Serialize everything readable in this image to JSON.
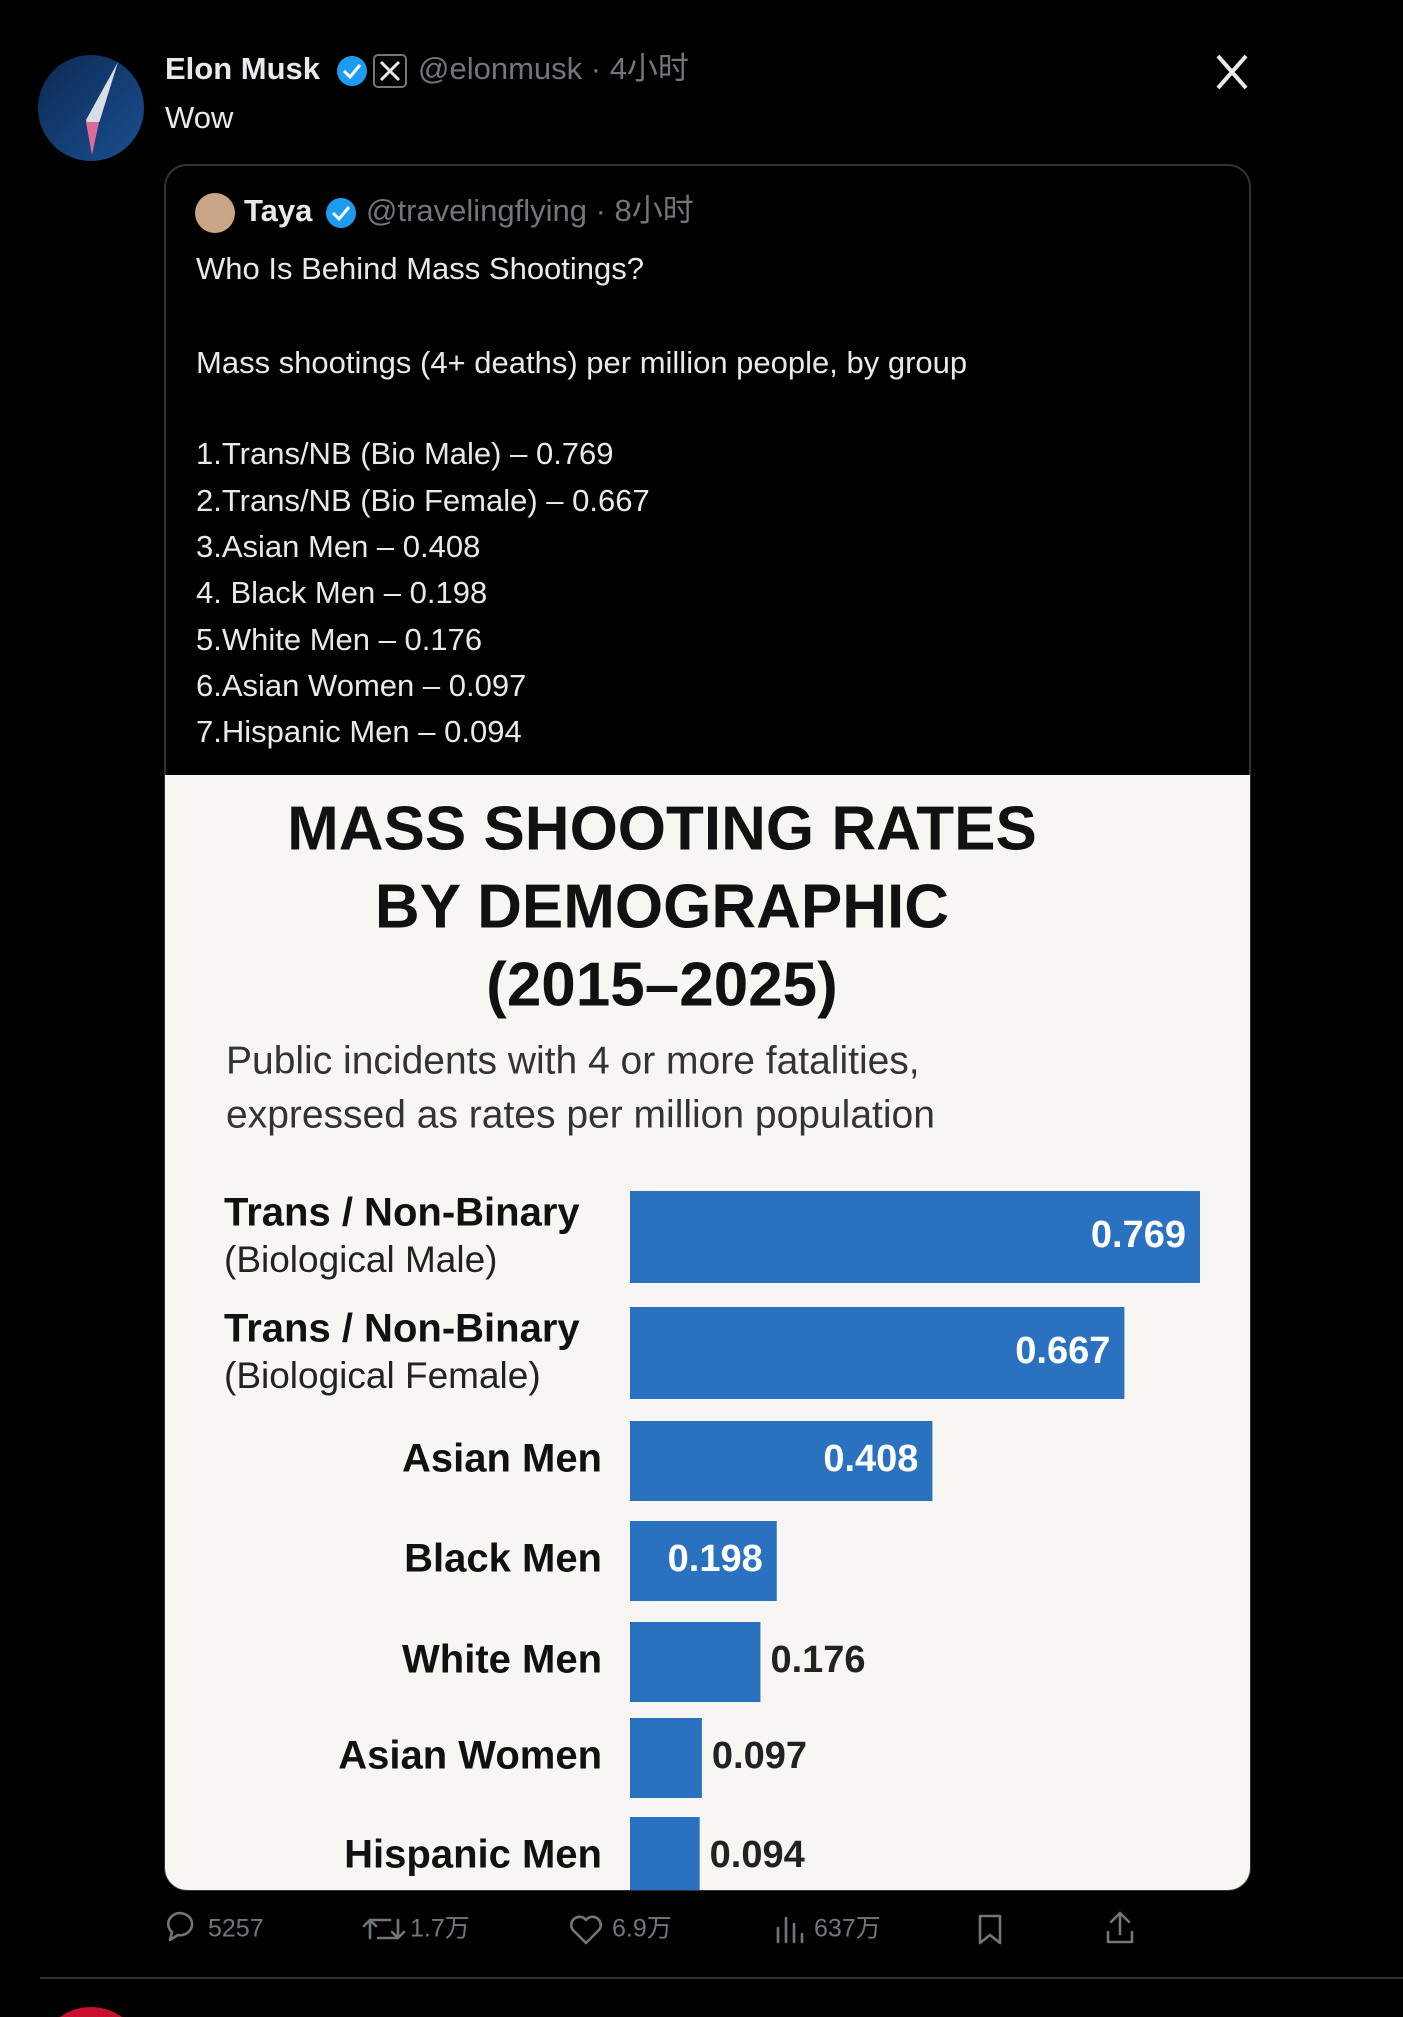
{
  "post": {
    "author": "Elon Musk",
    "meta": "@elonmusk · 4小时",
    "text": "Wow"
  },
  "quoted": {
    "author": "Taya",
    "meta": "@travelingflying · 8小时",
    "lines": [
      "Who Is Behind Mass Shootings?",
      "Mass shootings (4+ deaths) per million people, by group",
      "1.Trans/NB (Bio Male) – 0.769",
      "2.Trans/NB (Bio Female) – 0.667",
      "3.Asian Men – 0.408",
      "4. Black Men – 0.198",
      "5.White Men – 0.176",
      "6.Asian Women – 0.097",
      "7.Hispanic Men – 0.094"
    ]
  },
  "chart_data": {
    "type": "bar",
    "orientation": "horizontal",
    "title": [
      "MASS SHOOTING RATES",
      "BY DEMOGRAPHIC",
      "(2015–2025)"
    ],
    "subtitle": [
      "Public incidents with 4 or more fatalities,",
      "expressed as rates per million population"
    ],
    "categories": [
      "Trans / Non-Binary",
      "Trans / Non-Binary",
      "Asian Men",
      "Black Men",
      "White Men",
      "Asian Women",
      "Hispanic Men"
    ],
    "category_notes": [
      "(Biological Male)",
      "(Biological Female)",
      null,
      null,
      null,
      null,
      null
    ],
    "values": [
      0.769,
      0.667,
      0.408,
      0.198,
      0.176,
      0.097,
      0.094
    ],
    "color": "#2a71bf"
  },
  "actions": {
    "replies": "5257",
    "reposts": "1.7万",
    "likes": "6.9万",
    "views": "637万"
  }
}
